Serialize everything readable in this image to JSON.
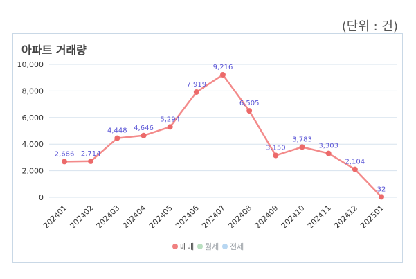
{
  "unit_label": "(단위 : 건)",
  "chart_data": {
    "type": "line",
    "title": "아파트 거래량",
    "categories": [
      "202401",
      "202402",
      "202403",
      "202404",
      "202405",
      "202406",
      "202407",
      "202408",
      "202409",
      "202410",
      "202411",
      "202412",
      "202501"
    ],
    "series": [
      {
        "name": "매매",
        "values": [
          2686,
          2714,
          4448,
          4646,
          5294,
          7919,
          9216,
          6505,
          3150,
          3783,
          3303,
          2104,
          32
        ],
        "data_labels": [
          "2,686",
          "2,714",
          "4,448",
          "4,646",
          "5,294",
          "7,919",
          "9,216",
          "6,505",
          "3,150",
          "3,783",
          "3,303",
          "2,104",
          "32"
        ]
      }
    ],
    "ylim": [
      0,
      10000
    ],
    "yticks": [
      0,
      2000,
      4000,
      6000,
      8000,
      10000
    ],
    "ytick_labels": [
      "0",
      "2,000",
      "4,000",
      "6,000",
      "8,000",
      "10,000"
    ],
    "grid": true,
    "legend": {
      "placement": "bottom",
      "entries": [
        {
          "name": "매매",
          "color": "#f08080",
          "active": true
        },
        {
          "name": "월세",
          "color": "#b9dfc0",
          "active": false
        },
        {
          "name": "전세",
          "color": "#b8d7f2",
          "active": false
        }
      ]
    },
    "colors": {
      "line": "#f38a8a",
      "point": "#ec6a6a",
      "data_label": "#5b56d6",
      "grid": "#d7e3ee"
    }
  }
}
